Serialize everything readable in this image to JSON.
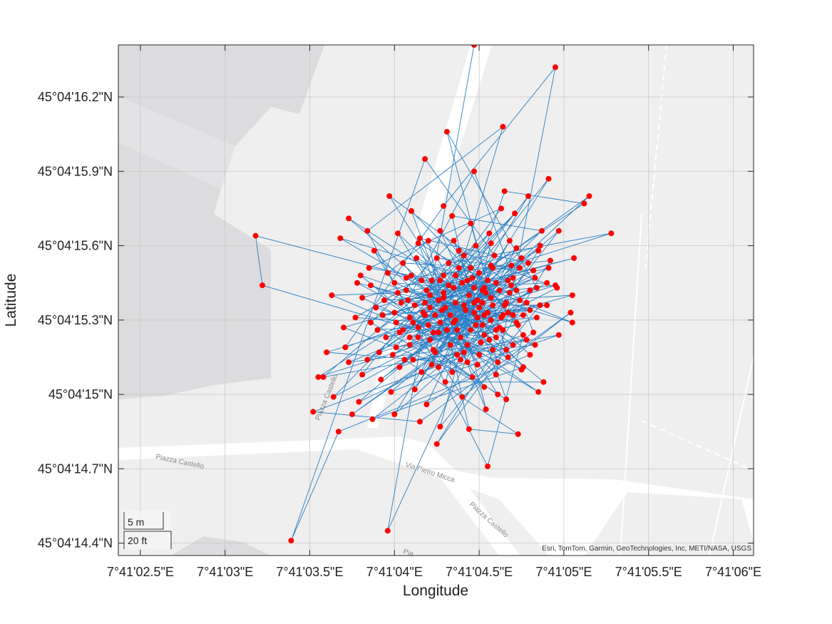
{
  "map": {
    "xlabel": "Longitude",
    "ylabel": "Latitude",
    "attribution": "Esri, TomTom, Garmin, GeoTechnologies, Inc, METI/NASA, USGS",
    "streets": [
      "Piazza Castello",
      "Via Pietro Micca",
      "Piazza Castello",
      "Piazza Castello",
      "Pia"
    ],
    "scalebar": {
      "metric": "5 m",
      "imperial": "20 ft"
    },
    "colors": {
      "track": "#2a7fc4",
      "point": "#ff0000",
      "basemap": "#efefef",
      "building": "#dcdcde",
      "road": "#ffffff"
    }
  },
  "chart_data": {
    "type": "scatter",
    "xlabel": "Longitude",
    "ylabel": "Latitude",
    "x_ticks": [
      "7°41'02.5\"E",
      "7°41'03\"E",
      "7°41'03.5\"E",
      "7°41'04\"E",
      "7°41'04.5\"E",
      "7°41'05\"E",
      "7°41'05.5\"E",
      "7°41'06\"E"
    ],
    "y_ticks": [
      "45°04'16.2\"N",
      "45°04'15.9\"N",
      "45°04'15.6\"N",
      "45°04'15.3\"N",
      "45°04'15\"N",
      "45°04'14.7\"N",
      "45°04'14.4\"N"
    ],
    "x_tick_values": [
      2.5,
      3.0,
      3.5,
      4.0,
      4.5,
      5.0,
      5.5,
      6.0
    ],
    "y_tick_values": [
      16.2,
      15.9,
      15.6,
      15.3,
      15.0,
      14.7,
      14.4
    ],
    "xlim": [
      2.37,
      6.12
    ],
    "ylim": [
      14.35,
      16.41
    ],
    "grid": true,
    "connected": true,
    "points": [
      [
        4.47,
        16.41
      ],
      [
        3.96,
        14.45
      ],
      [
        4.52,
        15.28
      ],
      [
        4.21,
        15.35
      ],
      [
        4.72,
        15.42
      ],
      [
        4.38,
        15.51
      ],
      [
        4.66,
        14.98
      ],
      [
        4.09,
        15.23
      ],
      [
        4.83,
        15.47
      ],
      [
        3.71,
        15.19
      ],
      [
        4.29,
        15.76
      ],
      [
        4.95,
        16.32
      ],
      [
        4.6,
        15.08
      ],
      [
        3.88,
        15.58
      ],
      [
        4.4,
        14.99
      ],
      [
        5.04,
        15.33
      ],
      [
        4.15,
        14.89
      ],
      [
        3.52,
        14.93
      ],
      [
        4.76,
        15.24
      ],
      [
        4.55,
        14.71
      ],
      [
        3.84,
        15.66
      ],
      [
        4.64,
        16.08
      ],
      [
        4.22,
        15.12
      ],
      [
        4.91,
        15.87
      ],
      [
        4.43,
        15.46
      ],
      [
        4.02,
        15.41
      ],
      [
        3.63,
        15.4
      ],
      [
        4.33,
        15.2
      ],
      [
        4.68,
        15.62
      ],
      [
        4.12,
        15.02
      ],
      [
        4.59,
        15.56
      ],
      [
        4.18,
        15.95
      ],
      [
        3.39,
        14.41
      ],
      [
        3.67,
        14.85
      ],
      [
        4.8,
        15.16
      ],
      [
        4.47,
        15.37
      ],
      [
        4.27,
        14.87
      ],
      [
        4.86,
        15.36
      ],
      [
        4.36,
        15.3
      ],
      [
        5.15,
        15.8
      ],
      [
        4.05,
        15.26
      ],
      [
        4.62,
        15.42
      ],
      [
        3.92,
        15.06
      ],
      [
        4.74,
        15.51
      ],
      [
        4.25,
        15.55
      ],
      [
        4.56,
        15.22
      ],
      [
        3.79,
        14.97
      ],
      [
        4.97,
        15.66
      ],
      [
        4.41,
        15.17
      ],
      [
        4.1,
        15.74
      ],
      [
        4.7,
        15.32
      ],
      [
        3.55,
        15.07
      ],
      [
        4.5,
        15.49
      ],
      [
        4.3,
        15.05
      ],
      [
        4.88,
        15.05
      ],
      [
        4.16,
        15.46
      ],
      [
        3.73,
        15.71
      ],
      [
        4.63,
        15.31
      ],
      [
        4.0,
        14.92
      ],
      [
        4.79,
        15.8
      ],
      [
        4.24,
        15.32
      ],
      [
        4.53,
        15.03
      ],
      [
        3.86,
        15.29
      ],
      [
        4.45,
        15.69
      ],
      [
        4.67,
        15.15
      ],
      [
        3.22,
        15.44
      ],
      [
        3.18,
        15.64
      ],
      [
        4.35,
        15.43
      ],
      [
        4.9,
        15.45
      ],
      [
        4.06,
        15.14
      ],
      [
        4.73,
        14.84
      ],
      [
        4.44,
        14.86
      ],
      [
        4.2,
        15.62
      ],
      [
        3.96,
        15.49
      ],
      [
        4.57,
        15.39
      ],
      [
        4.31,
        16.06
      ],
      [
        4.84,
        15.43
      ],
      [
        3.6,
        15.17
      ],
      [
        4.49,
        15.12
      ],
      [
        4.13,
        15.55
      ],
      [
        4.66,
        15.37
      ],
      [
        3.81,
        15.08
      ],
      [
        4.38,
        15.58
      ],
      [
        4.96,
        15.43
      ],
      [
        4.23,
        15.18
      ],
      [
        4.61,
        15.0
      ],
      [
        4.02,
        15.65
      ],
      [
        4.53,
        15.32
      ],
      [
        3.64,
        14.99
      ],
      [
        4.71,
        15.73
      ],
      [
        4.29,
        15.41
      ],
      [
        5.06,
        15.55
      ],
      [
        4.08,
        15.38
      ],
      [
        4.47,
        15.9
      ],
      [
        4.82,
        15.25
      ],
      [
        4.19,
        14.96
      ],
      [
        4.58,
        15.51
      ],
      [
        3.91,
        15.17
      ],
      [
        4.37,
        15.26
      ],
      [
        4.65,
        15.82
      ],
      [
        5.12,
        15.77
      ],
      [
        4.26,
        15.38
      ],
      [
        4.75,
        15.1
      ],
      [
        3.78,
        15.45
      ],
      [
        4.42,
        15.34
      ],
      [
        4.11,
        15.29
      ],
      [
        4.69,
        15.44
      ],
      [
        3.97,
        15.8
      ],
      [
        4.51,
        15.21
      ],
      [
        4.34,
        15.72
      ],
      [
        4.87,
        15.66
      ],
      [
        4.03,
        15.11
      ],
      [
        4.6,
        15.26
      ],
      [
        3.68,
        15.63
      ],
      [
        4.46,
        15.47
      ],
      [
        4.21,
        15.22
      ],
      [
        4.78,
        15.37
      ],
      [
        4.14,
        15.61
      ],
      [
        4.54,
        14.94
      ],
      [
        4.32,
        15.53
      ],
      [
        5.28,
        15.65
      ],
      [
        3.89,
        15.35
      ],
      [
        4.66,
        15.18
      ],
      [
        4.25,
        14.8
      ],
      [
        4.92,
        15.54
      ],
      [
        4.07,
        15.47
      ],
      [
        4.48,
        15.28
      ],
      [
        3.75,
        14.92
      ],
      [
        4.8,
        15.42
      ],
      [
        4.39,
        15.14
      ],
      [
        4.57,
        15.61
      ],
      [
        4.17,
        15.33
      ],
      [
        4.85,
        15.01
      ],
      [
        3.94,
        15.38
      ],
      [
        4.44,
        15.4
      ],
      [
        4.27,
        15.66
      ],
      [
        4.73,
        15.28
      ],
      [
        4.01,
        15.19
      ],
      [
        4.63,
        15.75
      ],
      [
        3.85,
        15.51
      ],
      [
        4.53,
        15.43
      ],
      [
        4.19,
        15.42
      ],
      [
        4.75,
        15.55
      ],
      [
        4.34,
        15.09
      ],
      [
        4.97,
        15.24
      ],
      [
        3.58,
        15.07
      ],
      [
        4.41,
        15.56
      ],
      [
        4.67,
        15.33
      ],
      [
        4.09,
        15.31
      ],
      [
        4.5,
        15.16
      ],
      [
        3.81,
        15.39
      ],
      [
        4.29,
        15.48
      ],
      [
        4.86,
        15.6
      ],
      [
        4.23,
        15.25
      ],
      [
        4.58,
        15.36
      ],
      [
        3.98,
        15.01
      ],
      [
        4.7,
        15.2
      ],
      [
        4.36,
        15.37
      ],
      [
        5.05,
        15.4
      ],
      [
        4.14,
        15.23
      ],
      [
        4.46,
        15.07
      ],
      [
        3.7,
        15.27
      ],
      [
        4.6,
        15.45
      ],
      [
        4.27,
        15.29
      ],
      [
        4.82,
        15.5
      ],
      [
        4.05,
        15.53
      ],
      [
        4.43,
        15.2
      ],
      [
        3.87,
        14.9
      ],
      [
        4.76,
        15.11
      ],
      [
        4.32,
        15.44
      ],
      [
        4.56,
        15.65
      ],
      [
        4.12,
        15.36
      ],
      [
        4.9,
        15.36
      ],
      [
        3.95,
        15.23
      ],
      [
        4.49,
        15.38
      ],
      [
        4.24,
        15.17
      ],
      [
        4.68,
        15.41
      ],
      [
        4.0,
        15.45
      ],
      [
        4.57,
        15.3
      ],
      [
        3.8,
        15.48
      ],
      [
        4.37,
        15.16
      ],
      [
        4.72,
        15.59
      ],
      [
        4.16,
        15.09
      ],
      [
        4.53,
        15.24
      ],
      [
        4.84,
        15.31
      ],
      [
        3.9,
        15.26
      ],
      [
        4.45,
        15.51
      ],
      [
        4.28,
        15.34
      ],
      [
        4.64,
        15.26
      ],
      [
        4.1,
        15.48
      ],
      [
        4.47,
        15.33
      ],
      [
        3.73,
        15.13
      ],
      [
        4.78,
        15.22
      ],
      [
        4.35,
        15.62
      ],
      [
        4.61,
        15.13
      ],
      [
        4.2,
        15.28
      ],
      [
        4.95,
        15.44
      ],
      [
        4.04,
        15.37
      ],
      [
        4.4,
        15.45
      ],
      [
        3.84,
        15.14
      ],
      [
        4.69,
        15.52
      ],
      [
        4.26,
        15.11
      ],
      [
        4.52,
        15.42
      ],
      [
        4.15,
        15.63
      ],
      [
        4.79,
        15.53
      ],
      [
        3.99,
        15.16
      ],
      [
        4.55,
        15.33
      ],
      [
        4.31,
        15.26
      ],
      [
        4.74,
        15.38
      ],
      [
        4.09,
        15.2
      ],
      [
        4.48,
        15.6
      ],
      [
        3.77,
        15.31
      ],
      [
        4.62,
        15.27
      ],
      [
        4.36,
        15.48
      ],
      [
        5.05,
        15.29
      ],
      [
        4.22,
        15.46
      ],
      [
        4.43,
        15.13
      ],
      [
        4.85,
        15.58
      ],
      [
        4.01,
        15.29
      ],
      [
        4.58,
        15.18
      ],
      [
        4.29,
        15.39
      ],
      [
        4.67,
        15.46
      ],
      [
        3.93,
        15.32
      ],
      [
        4.5,
        15.35
      ],
      [
        4.18,
        15.32
      ],
      [
        4.76,
        15.32
      ],
      [
        4.39,
        15.23
      ],
      [
        4.57,
        15.52
      ],
      [
        4.11,
        15.14
      ],
      [
        4.83,
        15.2
      ],
      [
        3.86,
        15.44
      ],
      [
        4.45,
        15.26
      ],
      [
        4.27,
        15.46
      ],
      [
        4.65,
        15.36
      ],
      [
        4.03,
        15.25
      ],
      [
        4.54,
        15.41
      ],
      [
        4.33,
        15.32
      ],
      [
        4.91,
        15.51
      ],
      [
        4.21,
        15.4
      ],
      [
        4.49,
        15.31
      ],
      [
        4.72,
        15.29
      ],
      [
        4.07,
        15.42
      ],
      [
        4.41,
        15.36
      ],
      [
        4.6,
        15.23
      ],
      [
        4.26,
        15.25
      ],
      [
        4.7,
        15.47
      ],
      [
        4.14,
        15.27
      ],
      [
        4.47,
        15.43
      ],
      [
        4.35,
        15.29
      ],
      [
        4.8,
        15.34
      ],
      [
        4.0,
        15.33
      ],
      [
        4.55,
        15.46
      ],
      [
        4.3,
        15.35
      ],
      [
        4.64,
        15.32
      ],
      [
        4.18,
        15.37
      ],
      [
        4.52,
        15.37
      ]
    ]
  }
}
